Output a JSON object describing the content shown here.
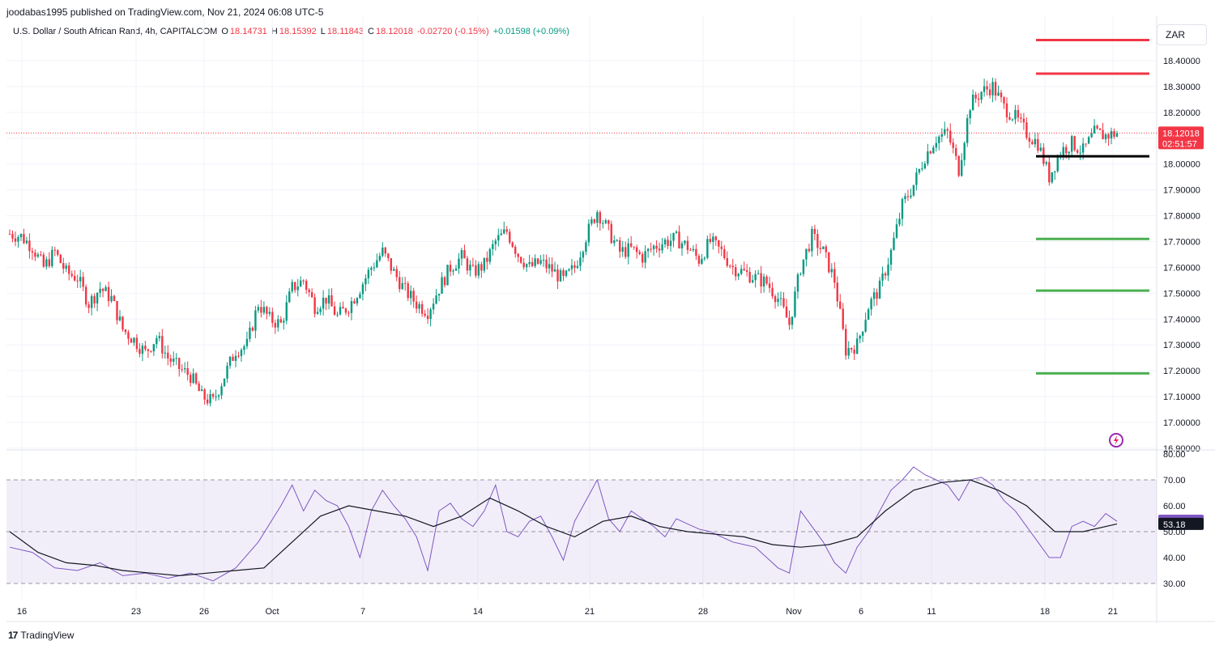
{
  "publisher": "joodabas1995 published on TradingView.com, Nov 21, 2024 06:08 UTC-5",
  "legend": {
    "symbol": "U.S. Dollar / South African Rand, 4h, CAPITALCOM",
    "o_label": "O",
    "o": "18.14731",
    "h_label": "H",
    "h": "18.15392",
    "l_label": "L",
    "l": "18.11843",
    "c_label": "C",
    "c": "18.12018",
    "change": "-0.02720 (-0.15%)",
    "extra": "+0.01598 (+0.09%)"
  },
  "currency": "ZAR",
  "footer_brand": "TradingView",
  "colors": {
    "up": "#089981",
    "down": "#f23645",
    "rsi": "#7e57c2",
    "rsi_ma": "#131722",
    "support": "#4caf50",
    "resistance": "#f23645",
    "pivot": "#000000"
  },
  "chart_data": [
    {
      "type": "candlestick",
      "series_name": "USD/ZAR 4h",
      "ylim": [
        16.9,
        18.45
      ],
      "y_ticks": [
        "18.40000",
        "18.30000",
        "18.20000",
        "18.10000",
        "18.00000",
        "17.90000",
        "17.80000",
        "17.70000",
        "17.60000",
        "17.50000",
        "17.40000",
        "17.30000",
        "17.20000",
        "17.10000",
        "17.00000",
        "16.90000"
      ],
      "x_ticks": [
        "16",
        "23",
        "26",
        "Oct",
        "7",
        "14",
        "21",
        "28",
        "Nov",
        "6",
        "11",
        "18",
        "21"
      ],
      "last_price": "18.12018",
      "countdown": "02:51:57",
      "close_path": [
        [
          0,
          17.73
        ],
        [
          4,
          17.72
        ],
        [
          8,
          17.68
        ],
        [
          12,
          17.6
        ],
        [
          16,
          17.66
        ],
        [
          20,
          17.58
        ],
        [
          24,
          17.56
        ],
        [
          28,
          17.46
        ],
        [
          32,
          17.52
        ],
        [
          36,
          17.48
        ],
        [
          40,
          17.36
        ],
        [
          44,
          17.32
        ],
        [
          48,
          17.27
        ],
        [
          52,
          17.33
        ],
        [
          56,
          17.25
        ],
        [
          60,
          17.21
        ],
        [
          64,
          17.18
        ],
        [
          68,
          17.1
        ],
        [
          72,
          17.08
        ],
        [
          76,
          17.18
        ],
        [
          80,
          17.28
        ],
        [
          84,
          17.3
        ],
        [
          88,
          17.46
        ],
        [
          92,
          17.4
        ],
        [
          96,
          17.38
        ],
        [
          100,
          17.52
        ],
        [
          104,
          17.55
        ],
        [
          108,
          17.45
        ],
        [
          112,
          17.48
        ],
        [
          116,
          17.41
        ],
        [
          120,
          17.45
        ],
        [
          124,
          17.52
        ],
        [
          128,
          17.6
        ],
        [
          132,
          17.66
        ],
        [
          136,
          17.58
        ],
        [
          140,
          17.51
        ],
        [
          144,
          17.46
        ],
        [
          148,
          17.43
        ],
        [
          152,
          17.52
        ],
        [
          156,
          17.6
        ],
        [
          160,
          17.64
        ],
        [
          164,
          17.58
        ],
        [
          168,
          17.61
        ],
        [
          172,
          17.7
        ],
        [
          176,
          17.74
        ],
        [
          180,
          17.65
        ],
        [
          184,
          17.6
        ],
        [
          188,
          17.62
        ],
        [
          192,
          17.59
        ],
        [
          196,
          17.55
        ],
        [
          200,
          17.6
        ],
        [
          204,
          17.72
        ],
        [
          208,
          17.82
        ],
        [
          212,
          17.74
        ],
        [
          216,
          17.66
        ],
        [
          220,
          17.67
        ],
        [
          224,
          17.64
        ],
        [
          228,
          17.68
        ],
        [
          232,
          17.7
        ],
        [
          236,
          17.71
        ],
        [
          240,
          17.68
        ],
        [
          244,
          17.63
        ],
        [
          248,
          17.7
        ],
        [
          252,
          17.66
        ],
        [
          256,
          17.6
        ],
        [
          260,
          17.58
        ],
        [
          264,
          17.56
        ],
        [
          268,
          17.54
        ],
        [
          272,
          17.48
        ],
        [
          276,
          17.38
        ],
        [
          280,
          17.6
        ],
        [
          284,
          17.72
        ],
        [
          288,
          17.66
        ],
        [
          292,
          17.55
        ],
        [
          296,
          17.28
        ],
        [
          300,
          17.3
        ],
        [
          304,
          17.45
        ],
        [
          308,
          17.52
        ],
        [
          312,
          17.66
        ],
        [
          316,
          17.84
        ],
        [
          320,
          17.92
        ],
        [
          324,
          18.03
        ],
        [
          328,
          18.1
        ],
        [
          332,
          18.12
        ],
        [
          336,
          17.98
        ],
        [
          340,
          18.23
        ],
        [
          344,
          18.28
        ],
        [
          348,
          18.3
        ],
        [
          352,
          18.22
        ],
        [
          356,
          18.18
        ],
        [
          360,
          18.12
        ],
        [
          364,
          18.08
        ],
        [
          368,
          17.95
        ],
        [
          372,
          18.05
        ],
        [
          376,
          18.08
        ],
        [
          380,
          18.05
        ],
        [
          384,
          18.12
        ],
        [
          388,
          18.11
        ],
        [
          392,
          18.12
        ]
      ],
      "horizontal_levels": [
        {
          "price": 18.48,
          "color": "resistance"
        },
        {
          "price": 18.35,
          "color": "resistance"
        },
        {
          "price": 18.03,
          "color": "pivot"
        },
        {
          "price": 17.71,
          "color": "support"
        },
        {
          "price": 17.51,
          "color": "support"
        },
        {
          "price": 17.19,
          "color": "support"
        }
      ]
    },
    {
      "type": "line",
      "series_name": "RSI",
      "ylim": [
        28,
        80
      ],
      "y_ticks": [
        "80.00",
        "70.00",
        "60.00",
        "50.00",
        "40.00",
        "30.00"
      ],
      "band": [
        30,
        70
      ],
      "midline": 50,
      "rsi_value": "54.06",
      "ma_value": "53.18",
      "rsi_path": [
        [
          0,
          44
        ],
        [
          8,
          42
        ],
        [
          16,
          36
        ],
        [
          24,
          35
        ],
        [
          32,
          38
        ],
        [
          40,
          33
        ],
        [
          48,
          34
        ],
        [
          56,
          32
        ],
        [
          64,
          34
        ],
        [
          72,
          31
        ],
        [
          80,
          36
        ],
        [
          88,
          46
        ],
        [
          96,
          60
        ],
        [
          100,
          68
        ],
        [
          104,
          58
        ],
        [
          108,
          66
        ],
        [
          112,
          62
        ],
        [
          116,
          60
        ],
        [
          120,
          52
        ],
        [
          124,
          40
        ],
        [
          128,
          58
        ],
        [
          132,
          66
        ],
        [
          136,
          60
        ],
        [
          140,
          55
        ],
        [
          144,
          48
        ],
        [
          148,
          35
        ],
        [
          152,
          58
        ],
        [
          156,
          61
        ],
        [
          160,
          55
        ],
        [
          164,
          52
        ],
        [
          168,
          58
        ],
        [
          172,
          68
        ],
        [
          176,
          50
        ],
        [
          180,
          48
        ],
        [
          184,
          54
        ],
        [
          188,
          56
        ],
        [
          192,
          48
        ],
        [
          196,
          39
        ],
        [
          200,
          54
        ],
        [
          204,
          62
        ],
        [
          208,
          70
        ],
        [
          212,
          55
        ],
        [
          216,
          50
        ],
        [
          220,
          58
        ],
        [
          224,
          55
        ],
        [
          228,
          52
        ],
        [
          232,
          48
        ],
        [
          236,
          55
        ],
        [
          240,
          53
        ],
        [
          244,
          51
        ],
        [
          248,
          50
        ],
        [
          252,
          48
        ],
        [
          256,
          46
        ],
        [
          260,
          45
        ],
        [
          264,
          44
        ],
        [
          268,
          40
        ],
        [
          272,
          36
        ],
        [
          276,
          34
        ],
        [
          280,
          58
        ],
        [
          284,
          52
        ],
        [
          288,
          46
        ],
        [
          292,
          38
        ],
        [
          296,
          34
        ],
        [
          300,
          44
        ],
        [
          304,
          50
        ],
        [
          308,
          58
        ],
        [
          312,
          66
        ],
        [
          316,
          70
        ],
        [
          320,
          75
        ],
        [
          324,
          72
        ],
        [
          328,
          70
        ],
        [
          332,
          68
        ],
        [
          336,
          62
        ],
        [
          340,
          70
        ],
        [
          344,
          71
        ],
        [
          348,
          68
        ],
        [
          352,
          62
        ],
        [
          356,
          58
        ],
        [
          360,
          52
        ],
        [
          364,
          46
        ],
        [
          368,
          40
        ],
        [
          372,
          40
        ],
        [
          376,
          52
        ],
        [
          380,
          54
        ],
        [
          384,
          52
        ],
        [
          388,
          57
        ],
        [
          392,
          54
        ]
      ],
      "ma_path": [
        [
          0,
          50
        ],
        [
          10,
          42
        ],
        [
          20,
          38
        ],
        [
          30,
          37
        ],
        [
          40,
          35
        ],
        [
          50,
          34
        ],
        [
          60,
          33
        ],
        [
          70,
          34
        ],
        [
          80,
          35
        ],
        [
          90,
          36
        ],
        [
          100,
          46
        ],
        [
          110,
          56
        ],
        [
          120,
          60
        ],
        [
          130,
          58
        ],
        [
          140,
          56
        ],
        [
          150,
          52
        ],
        [
          160,
          56
        ],
        [
          170,
          63
        ],
        [
          180,
          58
        ],
        [
          190,
          52
        ],
        [
          200,
          48
        ],
        [
          210,
          54
        ],
        [
          220,
          56
        ],
        [
          230,
          52
        ],
        [
          240,
          50
        ],
        [
          250,
          49
        ],
        [
          260,
          48
        ],
        [
          270,
          45
        ],
        [
          280,
          44
        ],
        [
          290,
          45
        ],
        [
          300,
          48
        ],
        [
          310,
          58
        ],
        [
          320,
          66
        ],
        [
          330,
          69
        ],
        [
          340,
          70
        ],
        [
          350,
          66
        ],
        [
          360,
          60
        ],
        [
          370,
          50
        ],
        [
          380,
          50
        ],
        [
          392,
          53
        ]
      ]
    }
  ]
}
